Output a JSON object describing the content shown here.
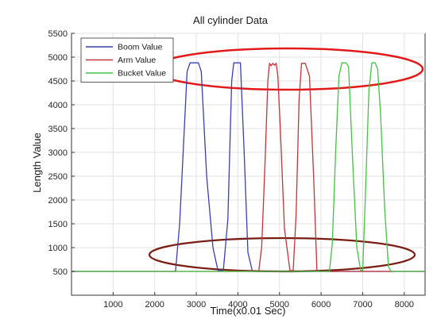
{
  "chart_data": {
    "type": "line",
    "title": "All cylinder Data",
    "xlabel": "Time(x0.01 Sec)",
    "ylabel": "Length Value",
    "xlim": [
      0,
      8500
    ],
    "ylim": [
      0,
      5500
    ],
    "xticks": [
      1000,
      2000,
      3000,
      4000,
      5000,
      6000,
      7000,
      8000
    ],
    "yticks": [
      500,
      1000,
      1500,
      2000,
      2500,
      3000,
      3500,
      4000,
      4500,
      5000,
      5500
    ],
    "grid": true,
    "legend_position": "top-left",
    "series": [
      {
        "name": "Boom Value",
        "color": "#3b3fae",
        "x": [
          0,
          2500,
          2600,
          2700,
          2780,
          2850,
          2950,
          3050,
          3120,
          3250,
          3400,
          3520,
          3650,
          3760,
          3850,
          3900,
          3980,
          4060,
          4150,
          4240,
          4350,
          8500
        ],
        "y": [
          500,
          500,
          1500,
          3300,
          4700,
          4880,
          4880,
          4880,
          4700,
          2500,
          1000,
          520,
          520,
          1600,
          4500,
          4880,
          4880,
          4880,
          3000,
          900,
          500,
          500
        ]
      },
      {
        "name": "Arm Value",
        "color": "#c0353a",
        "x": [
          0,
          4500,
          4570,
          4650,
          4720,
          4760,
          4800,
          4840,
          4880,
          4920,
          4960,
          5020,
          5120,
          5250,
          5330,
          5400,
          5470,
          5530,
          5620,
          5720,
          5820,
          5900,
          8500
        ],
        "y": [
          500,
          500,
          1000,
          2700,
          4500,
          4870,
          4820,
          4870,
          4830,
          4870,
          4600,
          3500,
          1400,
          520,
          520,
          1700,
          4100,
          4870,
          4870,
          4600,
          2500,
          500,
          500
        ]
      },
      {
        "name": "Bucket Value",
        "color": "#44c244",
        "x": [
          0,
          6200,
          6270,
          6350,
          6430,
          6500,
          6600,
          6660,
          6760,
          6860,
          6950,
          7000,
          7070,
          7150,
          7220,
          7300,
          7360,
          7430,
          7530,
          7620,
          7680,
          8500
        ],
        "y": [
          500,
          500,
          1100,
          3000,
          4600,
          4880,
          4880,
          4800,
          2800,
          1000,
          520,
          520,
          2200,
          4300,
          4880,
          4880,
          4750,
          3800,
          1800,
          600,
          500,
          500
        ]
      }
    ]
  }
}
